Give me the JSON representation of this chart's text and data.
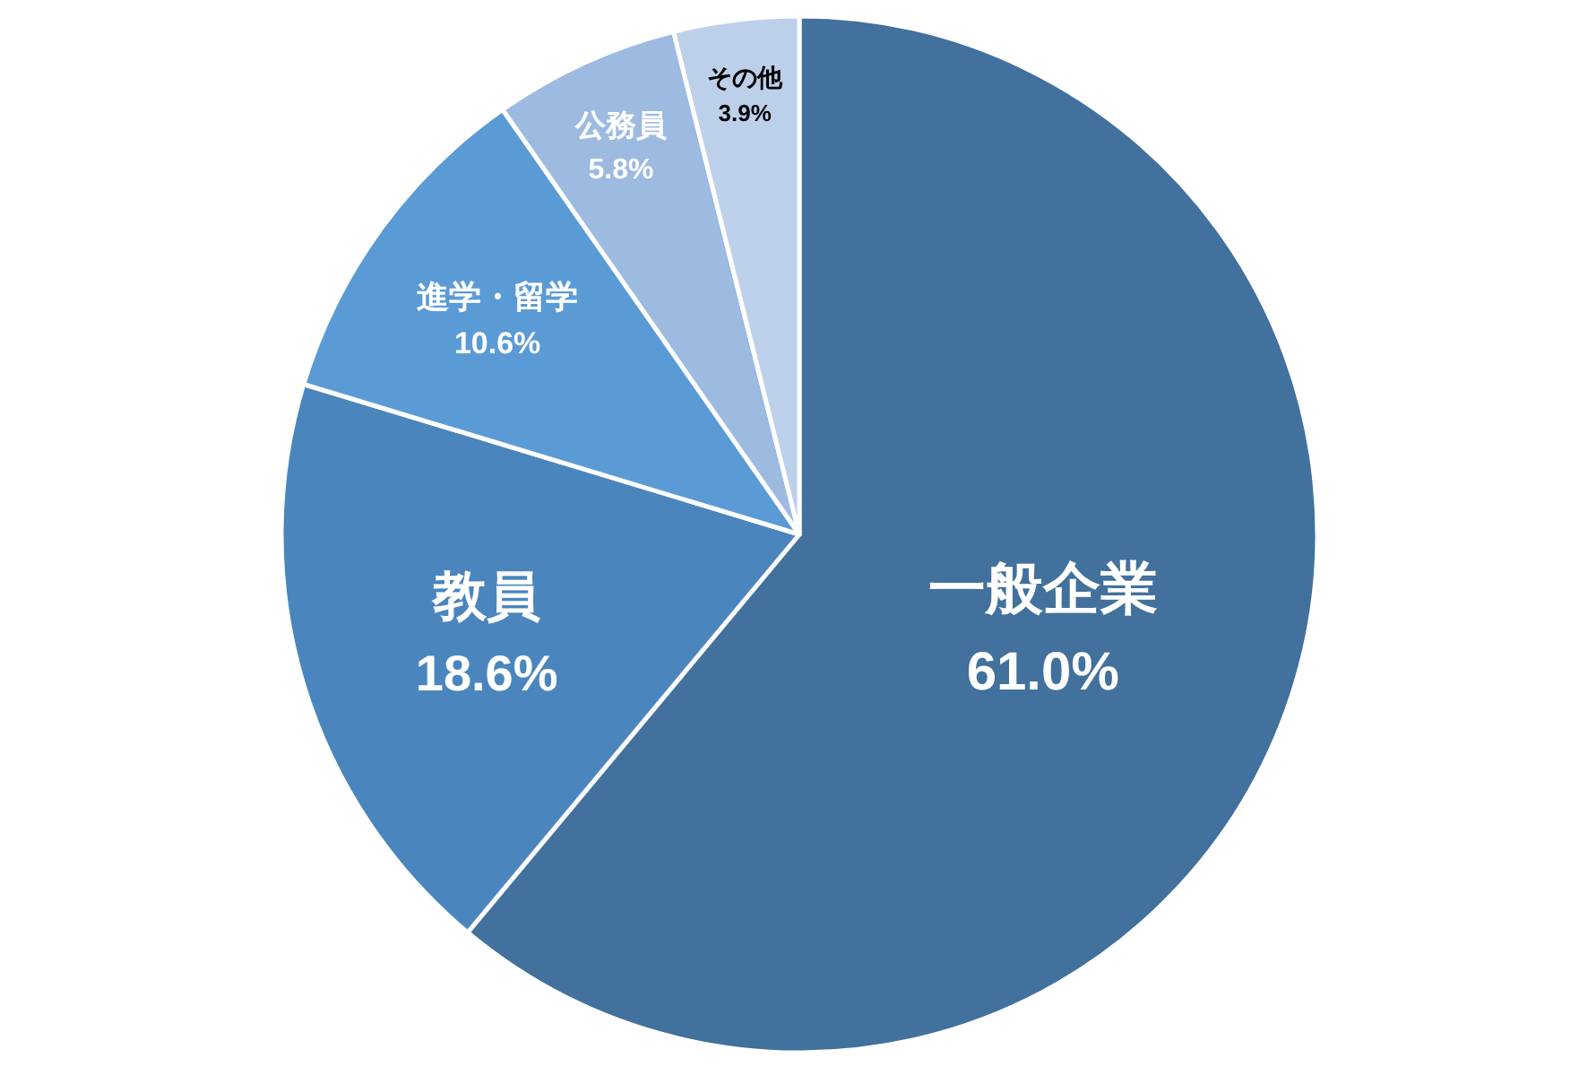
{
  "chart_data": {
    "type": "pie",
    "categories": [
      "一般企業",
      "教員",
      "進学・留学",
      "公務員",
      "その他"
    ],
    "values": [
      61.0,
      18.6,
      10.6,
      5.8,
      3.9
    ],
    "value_labels": [
      "61.0%",
      "18.6%",
      "10.6%",
      "5.8%",
      "3.9%"
    ],
    "colors": [
      "#41719c",
      "#4a86bd",
      "#5b9bd5",
      "#9dbbe0",
      "#bdd0ea"
    ]
  }
}
